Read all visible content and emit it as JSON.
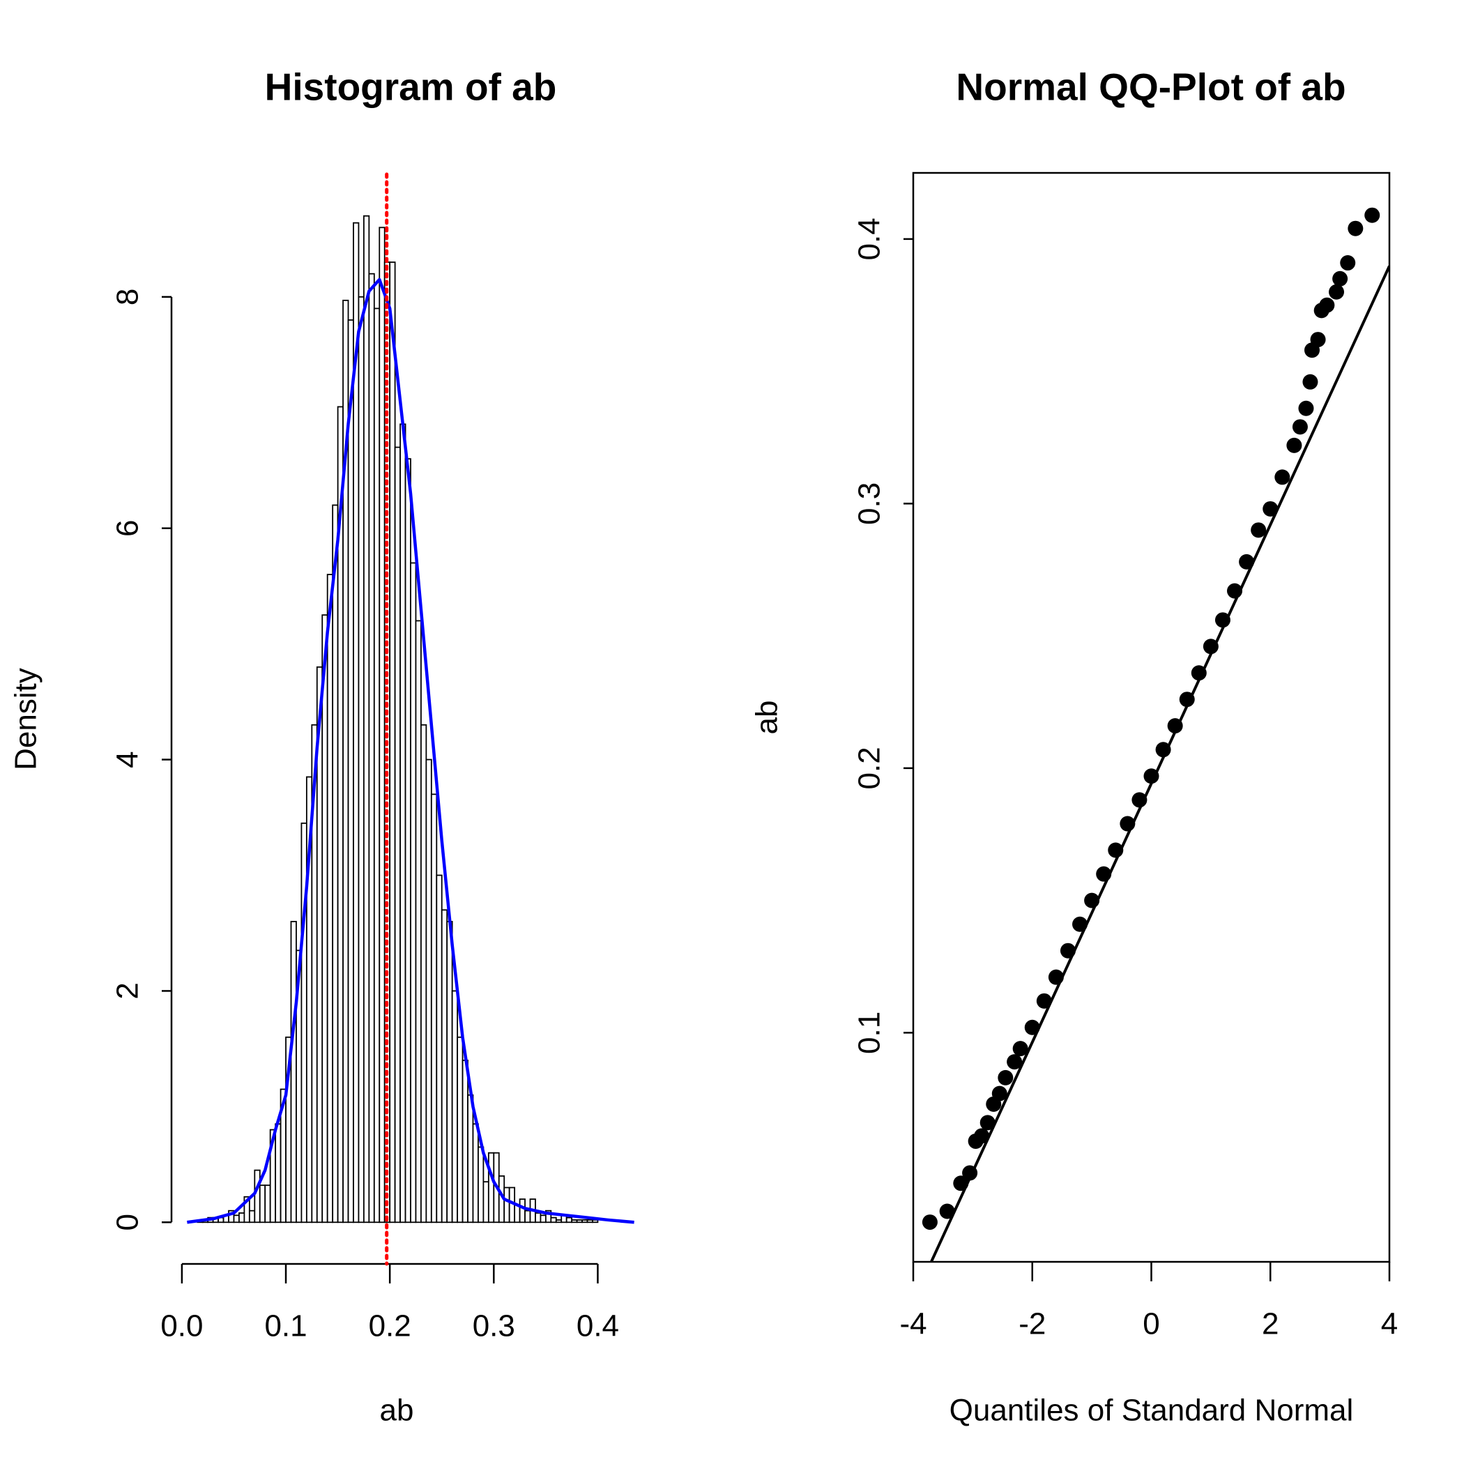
{
  "chart_data": [
    {
      "type": "histogram",
      "title": "Histogram of ab",
      "xlabel": "ab",
      "ylabel": "Density",
      "bins": [
        0.015,
        0.02,
        0.025,
        0.03,
        0.035,
        0.04,
        0.045,
        0.05,
        0.055,
        0.06,
        0.065,
        0.07,
        0.075,
        0.08,
        0.085,
        0.09,
        0.095,
        0.1,
        0.105,
        0.11,
        0.115,
        0.12,
        0.125,
        0.13,
        0.135,
        0.14,
        0.145,
        0.15,
        0.155,
        0.16,
        0.165,
        0.17,
        0.175,
        0.18,
        0.185,
        0.19,
        0.195,
        0.2,
        0.205,
        0.21,
        0.215,
        0.22,
        0.225,
        0.23,
        0.235,
        0.24,
        0.245,
        0.25,
        0.255,
        0.26,
        0.265,
        0.27,
        0.275,
        0.28,
        0.285,
        0.29,
        0.295,
        0.3,
        0.305,
        0.31,
        0.315,
        0.32,
        0.325,
        0.33,
        0.335,
        0.34,
        0.345,
        0.35,
        0.355,
        0.36,
        0.365,
        0.37,
        0.375,
        0.38,
        0.385,
        0.39,
        0.395,
        0.4
      ],
      "values": [
        0.02,
        0.02,
        0.04,
        0.04,
        0.04,
        0.06,
        0.1,
        0.06,
        0.08,
        0.22,
        0.1,
        0.45,
        0.32,
        0.32,
        0.8,
        0.85,
        1.15,
        1.6,
        2.6,
        2.35,
        3.45,
        3.85,
        4.3,
        4.8,
        5.25,
        5.6,
        6.2,
        7.05,
        7.97,
        7.8,
        8.64,
        8.0,
        8.7,
        8.2,
        7.9,
        8.6,
        8.3,
        8.3,
        6.7,
        6.9,
        6.6,
        5.7,
        5.2,
        4.3,
        4.0,
        3.7,
        3.0,
        2.7,
        2.6,
        2.0,
        1.6,
        1.4,
        1.1,
        0.85,
        0.65,
        0.35,
        0.6,
        0.6,
        0.4,
        0.3,
        0.3,
        0.15,
        0.2,
        0.1,
        0.2,
        0.08,
        0.06,
        0.1,
        0.04,
        0.02,
        0.06,
        0.04,
        0.02,
        0.02,
        0.02,
        0.02,
        0.02
      ],
      "color": "#ffffff",
      "density": {
        "color": "#0000ff",
        "x": [
          0.005,
          0.03,
          0.05,
          0.07,
          0.08,
          0.09,
          0.1,
          0.11,
          0.12,
          0.13,
          0.14,
          0.15,
          0.16,
          0.17,
          0.18,
          0.19,
          0.2,
          0.21,
          0.22,
          0.23,
          0.24,
          0.25,
          0.26,
          0.27,
          0.28,
          0.29,
          0.3,
          0.31,
          0.33,
          0.35,
          0.37,
          0.39,
          0.41,
          0.435
        ],
        "y": [
          0,
          0.03,
          0.08,
          0.25,
          0.45,
          0.8,
          1.1,
          1.9,
          2.9,
          4.1,
          5.1,
          5.9,
          6.9,
          7.7,
          8.05,
          8.15,
          7.9,
          7.1,
          6.3,
          5.3,
          4.3,
          3.3,
          2.4,
          1.6,
          1.0,
          0.6,
          0.35,
          0.2,
          0.12,
          0.08,
          0.06,
          0.04,
          0.02,
          0
        ]
      },
      "mean_line": {
        "value": 0.197,
        "color": "#ff0000"
      },
      "xlim": [
        -0.01,
        0.45
      ],
      "ylim": [
        -0.36,
        9.06
      ],
      "xticks": [
        {
          "value": 0,
          "label": "0.0"
        },
        0.1,
        0.2,
        0.3,
        0.4
      ],
      "yticks": [
        0,
        2,
        4,
        6,
        8
      ]
    },
    {
      "type": "scatter",
      "title": "Normal QQ-Plot of ab",
      "xlabel": "Quantiles of Standard Normal",
      "ylabel": "ab",
      "color": "#000000",
      "x": [
        -3.72,
        -3.43,
        -3.2,
        -3.05,
        -2.95,
        -2.85,
        -2.75,
        -2.65,
        -2.55,
        -2.45,
        -2.3,
        -2.2,
        -2.0,
        -1.8,
        -1.6,
        -1.4,
        -1.2,
        -1.0,
        -0.8,
        -0.6,
        -0.4,
        -0.2,
        0,
        0.2,
        0.4,
        0.6,
        0.8,
        1.0,
        1.2,
        1.4,
        1.6,
        1.8,
        2.0,
        2.2,
        2.4,
        2.5,
        2.6,
        2.67,
        2.7,
        2.8,
        2.86,
        2.95,
        3.11,
        3.17,
        3.3,
        3.43,
        3.71
      ],
      "y": [
        0.0284,
        0.0325,
        0.0431,
        0.047,
        0.059,
        0.061,
        0.066,
        0.073,
        0.077,
        0.083,
        0.089,
        0.094,
        0.102,
        0.112,
        0.121,
        0.131,
        0.141,
        0.15,
        0.16,
        0.169,
        0.179,
        0.188,
        0.197,
        0.207,
        0.216,
        0.226,
        0.236,
        0.246,
        0.256,
        0.267,
        0.278,
        0.29,
        0.298,
        0.31,
        0.322,
        0.329,
        0.336,
        0.346,
        0.358,
        0.362,
        0.373,
        0.375,
        0.38,
        0.385,
        0.391,
        0.404,
        0.409
      ],
      "qqline": {
        "intercept": 0.1942,
        "slope": 0.0489,
        "color": "#000000"
      },
      "xlim": [
        -4,
        4
      ],
      "ylim": [
        0.0134,
        0.425
      ],
      "xticks": [
        -4,
        -2,
        0,
        2,
        4
      ],
      "yticks": [
        0.1,
        0.2,
        0.3,
        0.4
      ]
    }
  ]
}
